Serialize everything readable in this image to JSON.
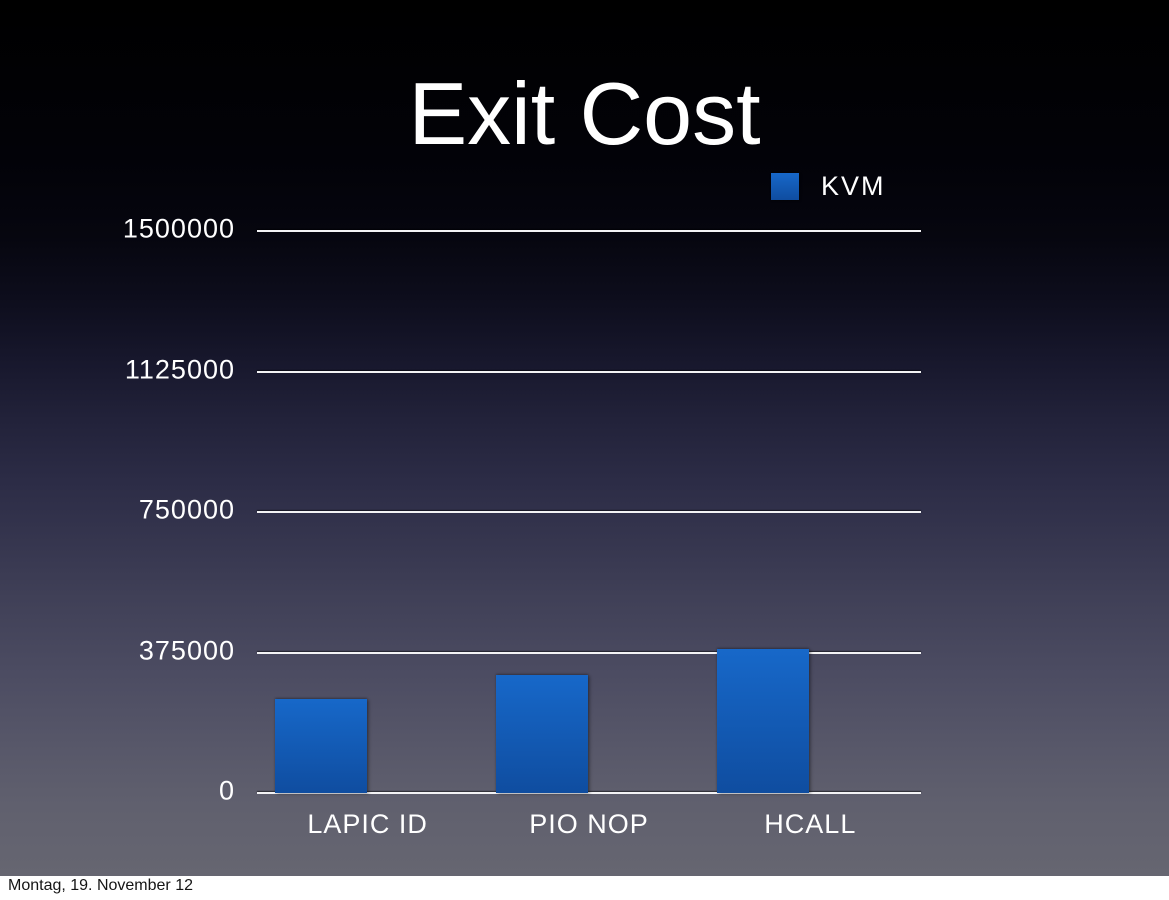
{
  "slide": {
    "title": "Exit Cost",
    "footer": "Montag, 19. November 12"
  },
  "legend": {
    "label": "KVM"
  },
  "chart_data": {
    "type": "bar",
    "title": "Exit Cost",
    "categories": [
      "LAPIC ID",
      "PIO NOP",
      "HCALL"
    ],
    "series": [
      {
        "name": "KVM",
        "values": [
          250000,
          315000,
          385000
        ]
      }
    ],
    "ylim": [
      0,
      1500000
    ],
    "yticks": [
      0,
      375000,
      750000,
      1125000,
      1500000
    ],
    "grid": "horizontal",
    "legend_position": "top-right",
    "colors": {
      "bar_top": "#1768c9",
      "bar_bottom": "#0f4da0",
      "gridline": "#f3f3f5",
      "text": "#ffffff"
    }
  }
}
